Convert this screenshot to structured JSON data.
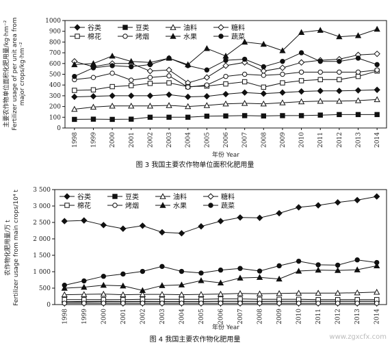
{
  "chart_data": [
    {
      "type": "line",
      "caption": "图 3 我国主要农作物单位面积化肥用量",
      "ylabel_cn": "主要农作物单位面积化肥用量/kg·hm⁻²",
      "ylabel_en_1": "Fertilizer usage of per unit area from",
      "ylabel_en_2": "major crops/kg·hm⁻²",
      "xlabel": "年份 Year",
      "ylim": [
        0,
        1000
      ],
      "yticks": [
        0,
        100,
        200,
        300,
        400,
        500,
        600,
        700,
        800,
        900,
        1000
      ],
      "x": [
        "1998",
        "1999",
        "2000",
        "2001",
        "2002",
        "2003",
        "2004",
        "2005",
        "2006",
        "2007",
        "2008",
        "2009",
        "2010",
        "2011",
        "2012",
        "2013",
        "2014"
      ],
      "legend_rows": [
        [
          "谷类",
          "豆类",
          "油料",
          "糖料"
        ],
        [
          "棉花",
          "烤烟",
          "水果",
          "蔬菜"
        ]
      ],
      "series": [
        {
          "name": "谷类",
          "values": [
            290,
            295,
            300,
            300,
            300,
            310,
            290,
            295,
            315,
            330,
            320,
            330,
            340,
            345,
            345,
            350,
            355
          ]
        },
        {
          "name": "豆类",
          "values": [
            80,
            82,
            80,
            82,
            100,
            100,
            100,
            110,
            112,
            115,
            112,
            115,
            115,
            120,
            125,
            125,
            125
          ]
        },
        {
          "name": "油料",
          "values": [
            175,
            195,
            205,
            205,
            205,
            210,
            200,
            210,
            225,
            230,
            225,
            235,
            245,
            250,
            250,
            255,
            265
          ]
        },
        {
          "name": "糖料",
          "values": [
            620,
            570,
            600,
            600,
            530,
            540,
            420,
            470,
            580,
            610,
            530,
            560,
            610,
            630,
            640,
            680,
            690
          ]
        },
        {
          "name": "棉花",
          "values": [
            350,
            355,
            385,
            395,
            415,
            420,
            385,
            390,
            410,
            430,
            380,
            420,
            440,
            450,
            450,
            480,
            530
          ]
        },
        {
          "name": "烤烟",
          "values": [
            450,
            470,
            510,
            445,
            470,
            485,
            380,
            400,
            480,
            500,
            490,
            500,
            520,
            520,
            520,
            520,
            540
          ]
        },
        {
          "name": "水果",
          "values": [
            590,
            600,
            670,
            620,
            610,
            650,
            590,
            740,
            670,
            800,
            780,
            720,
            890,
            910,
            850,
            860,
            920
          ]
        },
        {
          "name": "蔬菜",
          "values": [
            480,
            560,
            580,
            570,
            590,
            650,
            580,
            540,
            630,
            640,
            570,
            620,
            700,
            620,
            620,
            650,
            590
          ]
        }
      ]
    },
    {
      "type": "line",
      "caption": "图 4 我国主要农作物化肥用量",
      "ylabel_cn": "农作物化肥用量/万 t",
      "ylabel_en": "Fertilizer usage from main crops/10⁴ t",
      "xlabel": "年份 Year",
      "ylim": [
        0,
        3500
      ],
      "yticks": [
        0,
        500,
        1000,
        1500,
        2000,
        2500,
        3000,
        3500
      ],
      "ytick_labels": [
        "0",
        "500",
        "1 000",
        "1 500",
        "2 000",
        "2 500",
        "3 000",
        "3 500"
      ],
      "x": [
        "1998",
        "1999",
        "2000",
        "2001",
        "2002",
        "2003",
        "2004",
        "2005",
        "2006",
        "2007",
        "2008",
        "2009",
        "2010",
        "2011",
        "2012",
        "2013",
        "2014"
      ],
      "legend_rows": [
        [
          "谷类",
          "豆类",
          "油料",
          "糖料"
        ],
        [
          "棉花",
          "烤烟",
          "水果",
          "蔬菜"
        ]
      ],
      "series": [
        {
          "name": "谷类",
          "values": [
            2540,
            2560,
            2420,
            2310,
            2400,
            2200,
            2170,
            2380,
            2540,
            2650,
            2640,
            2780,
            2960,
            3020,
            3110,
            3180,
            3290
          ]
        },
        {
          "name": "豆类",
          "values": [
            90,
            95,
            100,
            95,
            100,
            95,
            95,
            95,
            100,
            100,
            95,
            100,
            100,
            100,
            100,
            100,
            100
          ]
        },
        {
          "name": "油料",
          "values": [
            300,
            310,
            320,
            300,
            310,
            310,
            300,
            310,
            320,
            340,
            330,
            340,
            350,
            350,
            350,
            360,
            380
          ]
        },
        {
          "name": "糖料",
          "values": [
            80,
            80,
            85,
            85,
            90,
            90,
            90,
            90,
            95,
            95,
            95,
            100,
            100,
            100,
            100,
            100,
            100
          ]
        },
        {
          "name": "棉花",
          "values": [
            150,
            150,
            150,
            150,
            160,
            160,
            160,
            160,
            170,
            170,
            160,
            160,
            160,
            150,
            150,
            150,
            150
          ]
        },
        {
          "name": "烤烟",
          "values": [
            40,
            40,
            40,
            40,
            40,
            40,
            40,
            40,
            40,
            40,
            40,
            40,
            40,
            40,
            40,
            40,
            40
          ]
        },
        {
          "name": "水果",
          "values": [
            500,
            530,
            590,
            570,
            430,
            580,
            600,
            730,
            660,
            810,
            830,
            780,
            1020,
            1050,
            1040,
            1060,
            1180
          ]
        },
        {
          "name": "蔬菜",
          "values": [
            590,
            720,
            860,
            930,
            1010,
            1160,
            1010,
            960,
            1050,
            1100,
            1020,
            1180,
            1320,
            1210,
            1200,
            1360,
            1280
          ]
        }
      ]
    }
  ],
  "markers": {
    "谷类": "filled-diamond",
    "豆类": "filled-square",
    "油料": "open-triangle",
    "糖料": "open-diamond",
    "棉花": "open-square",
    "烤烟": "open-circle",
    "水果": "filled-triangle",
    "蔬菜": "filled-circle"
  },
  "watermark": "www.zgxcfx.com"
}
